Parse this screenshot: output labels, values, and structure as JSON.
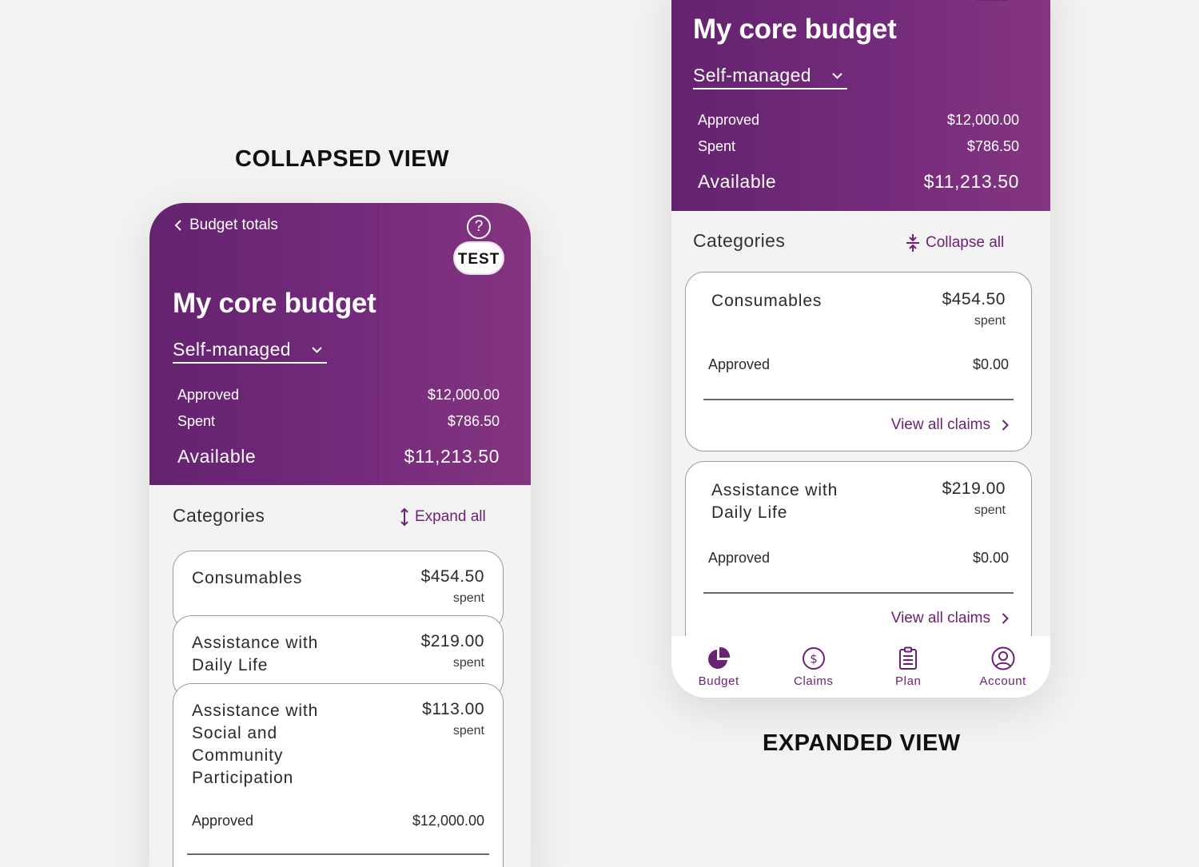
{
  "labels": {
    "collapsed": "COLLAPSED VIEW",
    "expanded": "EXPANDED VIEW"
  },
  "header": {
    "back_label": "Budget totals",
    "help_icon": "question-mark-circle-icon",
    "test_badge": "TEST",
    "title": "My core budget",
    "management": "Self-managed",
    "approved_label": "Approved",
    "approved_value": "$12,000.00",
    "spent_label": "Spent",
    "spent_value": "$786.50",
    "available_label": "Available",
    "available_value": "$11,213.50"
  },
  "categories_heading": "Categories",
  "collapsed_view": {
    "expand_all_label": "Expand all",
    "cards": [
      {
        "name": "Consumables",
        "amount": "$454.50",
        "spent": "spent"
      },
      {
        "name": "Assistance with Daily Life",
        "amount": "$219.00",
        "spent": "spent"
      },
      {
        "name": "Assistance with Social and Community Participation",
        "amount": "$113.00",
        "spent": "spent",
        "approved_label": "Approved",
        "approved_value": "$12,000.00"
      }
    ]
  },
  "expanded_view": {
    "collapse_all_label": "Collapse all",
    "cards": [
      {
        "name": "Consumables",
        "amount": "$454.50",
        "spent": "spent",
        "approved_label": "Approved",
        "approved_value": "$0.00",
        "view_all": "View all claims"
      },
      {
        "name": "Assistance with Daily Life",
        "amount": "$219.00",
        "spent": "spent",
        "approved_label": "Approved",
        "approved_value": "$0.00",
        "view_all": "View all claims"
      }
    ]
  },
  "bottom_nav": [
    {
      "label": "Budget",
      "icon": "pie-chart-icon"
    },
    {
      "label": "Claims",
      "icon": "dollar-circle-icon"
    },
    {
      "label": "Plan",
      "icon": "clipboard-icon"
    },
    {
      "label": "Account",
      "icon": "user-circle-icon"
    }
  ],
  "colors": {
    "brand_purple": "#6c2274",
    "header_gradient_start": "#64236f",
    "header_gradient_end": "#84357f",
    "page_background": "#f2f2f1"
  }
}
